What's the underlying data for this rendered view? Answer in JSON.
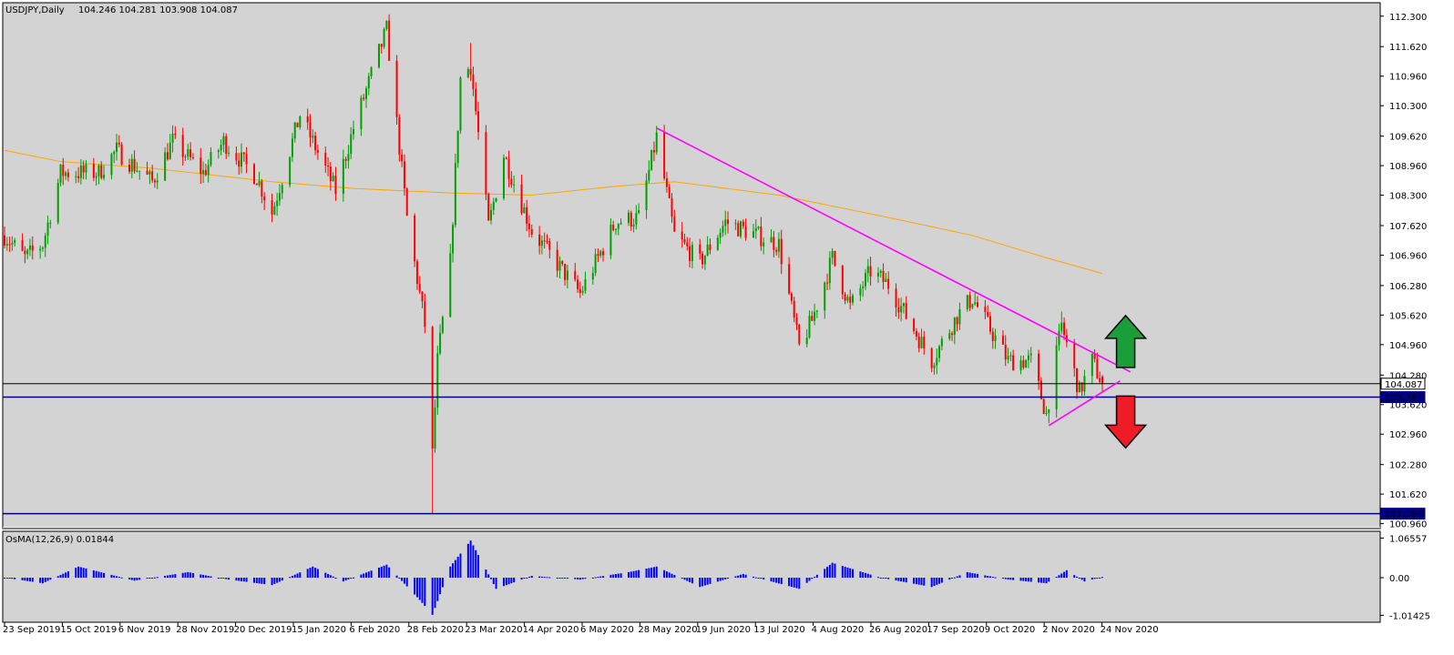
{
  "chart_data": [
    {
      "type": "candlestick",
      "symbol_label": "USDJPY,Daily",
      "ohlc_label": "104.246 104.281 103.908 104.087",
      "last": {
        "open": 104.246,
        "high": 104.281,
        "low": 103.908,
        "close": 104.087
      },
      "y_ticks": [
        {
          "value": 112.3,
          "label": "112.300"
        },
        {
          "value": 111.62,
          "label": "111.620"
        },
        {
          "value": 110.96,
          "label": "110.960"
        },
        {
          "value": 110.3,
          "label": "110.300"
        },
        {
          "value": 109.62,
          "label": "109.620"
        },
        {
          "value": 108.96,
          "label": "108.960"
        },
        {
          "value": 108.3,
          "label": "108.300"
        },
        {
          "value": 107.62,
          "label": "107.620"
        },
        {
          "value": 106.96,
          "label": "106.960"
        },
        {
          "value": 106.28,
          "label": "106.280"
        },
        {
          "value": 105.62,
          "label": "105.620"
        },
        {
          "value": 104.96,
          "label": "104.960"
        },
        {
          "value": 104.28,
          "label": "104.280"
        },
        {
          "value": 103.62,
          "label": "103.620"
        },
        {
          "value": 102.96,
          "label": "102.960"
        },
        {
          "value": 102.28,
          "label": "102.280"
        },
        {
          "value": 101.62,
          "label": "101.620"
        },
        {
          "value": 100.96,
          "label": "100.960"
        }
      ],
      "x_ticks": [
        "23 Sep 2019",
        "15 Oct 2019",
        "6 Nov 2019",
        "28 Nov 2019",
        "20 Dec 2019",
        "15 Jan 2020",
        "6 Feb 2020",
        "28 Feb 2020",
        "23 Mar 2020",
        "14 Apr 2020",
        "6 May 2020",
        "28 May 2020",
        "19 Jun 2020",
        "13 Jul 2020",
        "4 Aug 2020",
        "26 Aug 2020",
        "17 Sep 2020",
        "9 Oct 2020",
        "2 Nov 2020",
        "24 Nov 2020"
      ],
      "x_range": [
        "2019-09-23",
        "2020-11-27"
      ],
      "ylim": [
        100.85,
        112.6
      ],
      "horizontal_levels": [
        {
          "value": 104.087,
          "label": "104.087",
          "color": "#000000",
          "kind": "current-price"
        },
        {
          "value": 103.787,
          "label": "103.787",
          "color": "#000080",
          "kind": "support"
        },
        {
          "value": 101.183,
          "label": "101.183",
          "color": "#000080",
          "kind": "support"
        }
      ],
      "moving_average_color": "#ffa500",
      "trendline_color": "#ff00ff",
      "bull_color": "#00a000",
      "bear_color": "#ff0000",
      "anchors": [
        {
          "date": "2019-09-23",
          "price": 107.4
        },
        {
          "date": "2019-10-01",
          "price": 106.9
        },
        {
          "date": "2019-10-08",
          "price": 107.2
        },
        {
          "date": "2019-10-15",
          "price": 108.8
        },
        {
          "date": "2019-10-30",
          "price": 108.8
        },
        {
          "date": "2019-11-06",
          "price": 109.3
        },
        {
          "date": "2019-11-20",
          "price": 108.6
        },
        {
          "date": "2019-11-28",
          "price": 109.5
        },
        {
          "date": "2019-12-10",
          "price": 108.8
        },
        {
          "date": "2019-12-18",
          "price": 109.5
        },
        {
          "date": "2019-12-31",
          "price": 108.7
        },
        {
          "date": "2020-01-06",
          "price": 107.9
        },
        {
          "date": "2020-01-17",
          "price": 110.1
        },
        {
          "date": "2020-01-31",
          "price": 108.4
        },
        {
          "date": "2020-02-07",
          "price": 109.8
        },
        {
          "date": "2020-02-20",
          "price": 112.0
        },
        {
          "date": "2020-02-28",
          "price": 107.8
        },
        {
          "date": "2020-03-06",
          "price": 105.4
        },
        {
          "date": "2020-03-09",
          "price": 102.5
        },
        {
          "date": "2020-03-11",
          "price": 104.6
        },
        {
          "date": "2020-03-16",
          "price": 106.8
        },
        {
          "date": "2020-03-20",
          "price": 110.9
        },
        {
          "date": "2020-03-24",
          "price": 111.2
        },
        {
          "date": "2020-03-31",
          "price": 107.6
        },
        {
          "date": "2020-04-06",
          "price": 109.2
        },
        {
          "date": "2020-04-17",
          "price": 107.5
        },
        {
          "date": "2020-05-06",
          "price": 106.1
        },
        {
          "date": "2020-05-20",
          "price": 107.7
        },
        {
          "date": "2020-05-29",
          "price": 107.8
        },
        {
          "date": "2020-06-05",
          "price": 109.6
        },
        {
          "date": "2020-06-12",
          "price": 107.4
        },
        {
          "date": "2020-06-22",
          "price": 106.8
        },
        {
          "date": "2020-07-02",
          "price": 107.7
        },
        {
          "date": "2020-07-23",
          "price": 107.2
        },
        {
          "date": "2020-07-31",
          "price": 104.9
        },
        {
          "date": "2020-08-05",
          "price": 105.5
        },
        {
          "date": "2020-08-13",
          "price": 106.9
        },
        {
          "date": "2020-08-20",
          "price": 105.8
        },
        {
          "date": "2020-08-28",
          "price": 106.6
        },
        {
          "date": "2020-09-04",
          "price": 106.3
        },
        {
          "date": "2020-09-21",
          "price": 104.6
        },
        {
          "date": "2020-10-01",
          "price": 105.6
        },
        {
          "date": "2020-10-07",
          "price": 106.0
        },
        {
          "date": "2020-10-21",
          "price": 104.6
        },
        {
          "date": "2020-10-30",
          "price": 104.6
        },
        {
          "date": "2020-11-05",
          "price": 103.4
        },
        {
          "date": "2020-11-11",
          "price": 105.4
        },
        {
          "date": "2020-11-18",
          "price": 103.9
        },
        {
          "date": "2020-11-23",
          "price": 104.6
        },
        {
          "date": "2020-11-27",
          "price": 104.087
        }
      ],
      "extremes": [
        {
          "date": "2020-02-20",
          "high": 112.2
        },
        {
          "date": "2020-03-09",
          "low": 101.183
        },
        {
          "date": "2020-03-24",
          "high": 111.7
        },
        {
          "date": "2020-06-05",
          "high": 109.85
        },
        {
          "date": "2020-11-06",
          "low": 103.2
        },
        {
          "date": "2020-11-11",
          "high": 105.7
        }
      ],
      "moving_average": [
        {
          "date": "2019-09-23",
          "price": 109.3
        },
        {
          "date": "2019-10-15",
          "price": 109.05
        },
        {
          "date": "2019-11-20",
          "price": 108.9
        },
        {
          "date": "2020-01-06",
          "price": 108.6
        },
        {
          "date": "2020-02-07",
          "price": 108.45
        },
        {
          "date": "2020-03-16",
          "price": 108.35
        },
        {
          "date": "2020-04-17",
          "price": 108.3
        },
        {
          "date": "2020-05-20",
          "price": 108.5
        },
        {
          "date": "2020-06-12",
          "price": 108.6
        },
        {
          "date": "2020-07-23",
          "price": 108.3
        },
        {
          "date": "2020-09-04",
          "price": 107.8
        },
        {
          "date": "2020-10-07",
          "price": 107.4
        },
        {
          "date": "2020-11-05",
          "price": 106.9
        },
        {
          "date": "2020-11-27",
          "price": 106.55
        }
      ],
      "trendlines": [
        {
          "from": {
            "date": "2020-06-05",
            "price": 109.8
          },
          "to": {
            "date": "2020-12-08",
            "price": 104.35
          }
        },
        {
          "from": {
            "date": "2020-11-06",
            "price": 103.15
          },
          "to": {
            "date": "2020-12-04",
            "price": 104.15
          }
        }
      ],
      "arrows": [
        {
          "direction": "up",
          "color": "#1a9e3a",
          "date": "2020-12-04",
          "price": 105.0
        },
        {
          "direction": "down",
          "color": "#ee1c25",
          "date": "2020-12-04",
          "price": 103.2
        }
      ]
    },
    {
      "type": "bar",
      "indicator_label": "OsMA(12,26,9) 0.01844",
      "value": 0.01844,
      "y_ticks": [
        {
          "value": 1.06557,
          "label": "1.06557"
        },
        {
          "value": 0.0,
          "label": "0.00"
        },
        {
          "value": -1.01425,
          "label": "-1.01425"
        }
      ],
      "ylim": [
        -1.2,
        1.25
      ],
      "bar_color": "#0000ff",
      "points": [
        {
          "date": "2019-09-23",
          "value": 0.0
        },
        {
          "date": "2019-10-08",
          "value": -0.15
        },
        {
          "date": "2019-10-22",
          "value": 0.3
        },
        {
          "date": "2019-11-13",
          "value": -0.08
        },
        {
          "date": "2019-12-04",
          "value": 0.15
        },
        {
          "date": "2019-12-20",
          "value": -0.05
        },
        {
          "date": "2020-01-06",
          "value": -0.2
        },
        {
          "date": "2020-01-22",
          "value": 0.3
        },
        {
          "date": "2020-02-03",
          "value": -0.1
        },
        {
          "date": "2020-02-20",
          "value": 0.35
        },
        {
          "date": "2020-03-04",
          "value": -0.6
        },
        {
          "date": "2020-03-09",
          "value": -1.0
        },
        {
          "date": "2020-03-16",
          "value": 0.3
        },
        {
          "date": "2020-03-24",
          "value": 1.0
        },
        {
          "date": "2020-04-03",
          "value": -0.3
        },
        {
          "date": "2020-04-17",
          "value": 0.05
        },
        {
          "date": "2020-05-06",
          "value": -0.05
        },
        {
          "date": "2020-05-25",
          "value": 0.15
        },
        {
          "date": "2020-06-05",
          "value": 0.3
        },
        {
          "date": "2020-06-22",
          "value": -0.25
        },
        {
          "date": "2020-07-09",
          "value": 0.1
        },
        {
          "date": "2020-07-31",
          "value": -0.3
        },
        {
          "date": "2020-08-13",
          "value": 0.4
        },
        {
          "date": "2020-09-01",
          "value": 0.0
        },
        {
          "date": "2020-09-21",
          "value": -0.25
        },
        {
          "date": "2020-10-05",
          "value": 0.15
        },
        {
          "date": "2020-10-21",
          "value": -0.05
        },
        {
          "date": "2020-11-05",
          "value": -0.15
        },
        {
          "date": "2020-11-13",
          "value": 0.2
        },
        {
          "date": "2020-11-20",
          "value": -0.1
        },
        {
          "date": "2020-11-27",
          "value": 0.01844
        }
      ]
    }
  ]
}
